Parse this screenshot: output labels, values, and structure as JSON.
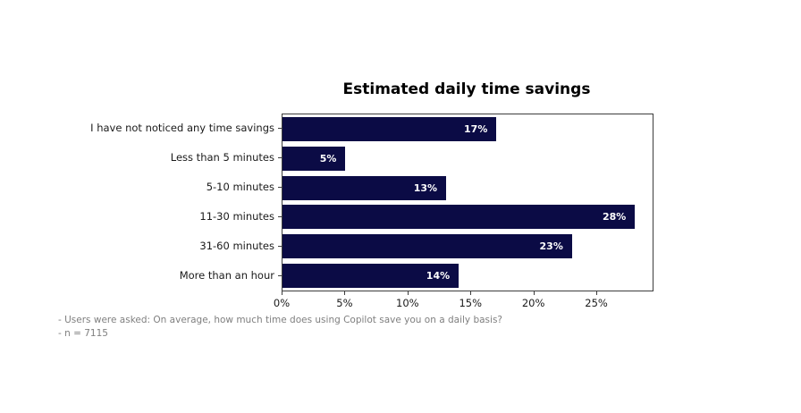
{
  "chart_data": {
    "type": "bar",
    "orientation": "horizontal",
    "title": "Estimated daily time savings",
    "categories": [
      "I have not noticed any time savings",
      "Less than 5 minutes",
      "5-10 minutes",
      "11-30 minutes",
      "31-60 minutes",
      "More than an hour"
    ],
    "values": [
      17,
      5,
      13,
      28,
      23,
      14
    ],
    "value_labels": [
      "17%",
      "5%",
      "13%",
      "28%",
      "23%",
      "14%"
    ],
    "x_ticks": [
      0,
      5,
      10,
      15,
      20,
      25
    ],
    "x_tick_labels": [
      "0%",
      "5%",
      "10%",
      "15%",
      "20%",
      "25%"
    ],
    "xlim": [
      0,
      29.4
    ],
    "grid": false,
    "legend_position": "none",
    "colors": {
      "bar": "#0b0b45",
      "value_label": "#ffffff",
      "axis": "#3c3c3c",
      "tick_text": "#1a1a1a",
      "footnote_text": "#7f7f7f"
    }
  },
  "footnotes": [
    "- Users were asked: On average, how much time does using Copilot save you on a daily basis?",
    "- n = 7115"
  ]
}
